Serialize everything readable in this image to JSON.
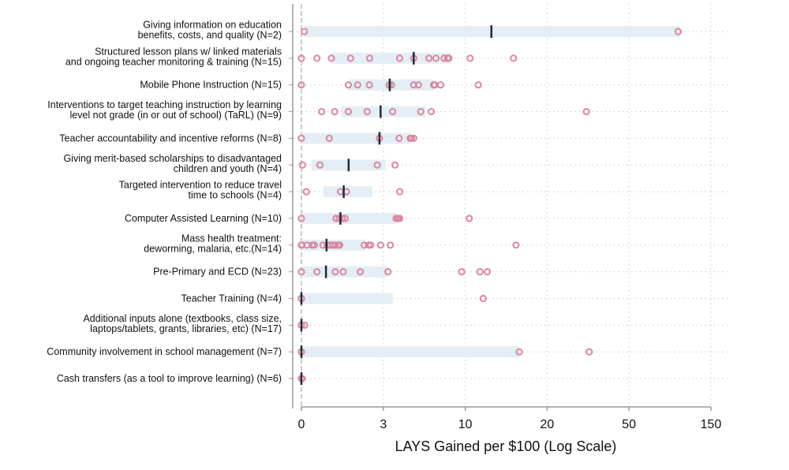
{
  "chart_data": {
    "type": "scatter",
    "title": "",
    "xlabel": "LAYS Gained per $100 (Log Scale)",
    "ylabel": "",
    "x_ticks": [
      0,
      3,
      10,
      20,
      50,
      150
    ],
    "x_tick_labels": [
      "0",
      "3",
      "10",
      "20",
      "50",
      "150"
    ],
    "xlim": [
      0,
      150
    ],
    "grid": true,
    "colors": {
      "point": "#d9879f",
      "range_bar": "#e5edf5",
      "median": "#1f2a3c",
      "grid": "#c8c8c8",
      "axis": "#999999"
    },
    "categories": [
      {
        "label": [
          "Giving information on education",
          "benefits, costs, and quality (N=2)"
        ],
        "points": [
          0.11,
          110
        ],
        "median": 13.2,
        "range": [
          0.1,
          112
        ]
      },
      {
        "label": [
          "Structured lesson plans w/ linked materials",
          "and ongoing teacher monitoring & training (N=15)"
        ],
        "points": [
          0,
          0.57,
          1.1,
          1.8,
          2.5,
          4.4,
          5.6,
          6.9,
          7.5,
          8.2,
          8.5,
          8.6,
          10.6,
          15.9
        ],
        "median": 5.6,
        "range": [
          1.1,
          8.8
        ]
      },
      {
        "label": [
          "Mobile Phone Instruction (N=15)"
        ],
        "points": [
          0,
          1.72,
          2.06,
          2.49,
          3.5,
          3.7,
          5.6,
          6.0,
          7.3,
          7.4,
          7.9,
          11.6
        ],
        "median": 3.55,
        "range": [
          1.72,
          7.3
        ]
      },
      {
        "label": [
          "Interventions to target teaching instruction by learning",
          "level not grade (in or out of school) (TaRL) (N=9)"
        ],
        "points": [
          0.74,
          1.22,
          1.72,
          2.41,
          3.8,
          6.2,
          7.1,
          34.4
        ],
        "median": 2.9,
        "range": [
          1.46,
          6.6
        ]
      },
      {
        "label": [
          "Teacher accountability and incentive reforms (N=8)"
        ],
        "points": [
          0,
          1.02,
          2.86,
          4.35,
          5.3,
          5.4,
          5.6
        ],
        "median": 2.86,
        "range": [
          0,
          5.3
        ]
      },
      {
        "label": [
          "Giving merit-based scholarships to disadvantaged",
          "children and youth (N=4)"
        ],
        "points": [
          0.04,
          0.68,
          2.78,
          4.0
        ],
        "median": 1.73,
        "range": [
          0.37,
          3.2
        ]
      },
      {
        "label": [
          "Targeted intervention to reduce travel",
          "time to schools (N=4)"
        ],
        "points": [
          0.18,
          1.43,
          1.65,
          4.4
        ],
        "median": 1.55,
        "range": [
          0.8,
          2.6
        ]
      },
      {
        "label": [
          "Computer Assisted Learning (N=10)"
        ],
        "points": [
          0,
          1.27,
          1.38,
          1.5,
          1.6,
          4.1,
          4.25,
          4.4,
          10.5
        ],
        "median": 1.43,
        "range": [
          0,
          4.1
        ]
      },
      {
        "label": [
          "Mass health treatment:",
          "deworming, malaria, etc.(N=14)"
        ],
        "points": [
          0,
          0.02,
          0.2,
          0.4,
          0.47,
          0.79,
          0.95,
          1.05,
          1.15,
          1.24,
          1.34,
          1.4,
          2.3,
          2.46,
          2.54,
          2.9,
          3.6,
          16.2
        ],
        "median": 0.92,
        "range": [
          0,
          2.35
        ]
      },
      {
        "label": [
          "Pre-Primary and ECD (N=23)"
        ],
        "points": [
          0,
          0.57,
          1.24,
          1.53,
          2.16,
          3.4,
          9.7,
          11.8,
          12.7
        ],
        "median": 0.9,
        "range": [
          0,
          3.4
        ]
      },
      {
        "label": [
          "Teacher Training (N=4)"
        ],
        "points": [
          0,
          0,
          0,
          12.2
        ],
        "median": 0,
        "range": [
          0,
          3.8
        ]
      },
      {
        "label": [
          "Additional inputs alone (textbooks, class size,",
          "laptops/tablets, grants, libraries, etc)  (N=17)"
        ],
        "points": [
          0,
          0,
          0.12
        ],
        "median": 0,
        "range": [
          0,
          0
        ]
      },
      {
        "label": [
          "Community involvement in school management (N=7)"
        ],
        "points": [
          0,
          0,
          16.6,
          35.4
        ],
        "median": 0,
        "range": [
          0,
          16.6
        ]
      },
      {
        "label": [
          "Cash transfers (as a tool to improve learning) (N=6)"
        ],
        "points": [
          0,
          0.03
        ],
        "median": 0,
        "range": [
          0,
          0
        ]
      }
    ]
  }
}
